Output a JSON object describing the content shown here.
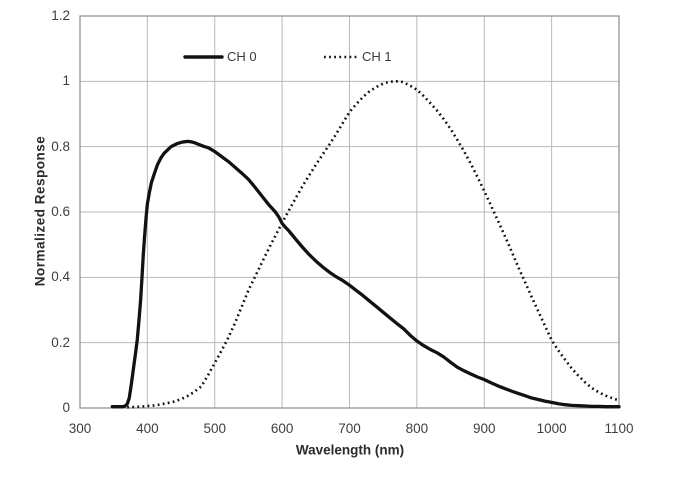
{
  "chart_data": {
    "type": "line",
    "xlabel": "Wavelength (nm)",
    "ylabel": "Normalized Response",
    "xlim": [
      300,
      1100
    ],
    "ylim": [
      0,
      1.2
    ],
    "xticks": [
      300,
      400,
      500,
      600,
      700,
      800,
      900,
      1000,
      1100
    ],
    "xtick_labels": [
      "300",
      "400",
      "500",
      "600",
      "700",
      "800",
      "900",
      "1000",
      "1100"
    ],
    "yticks": [
      0,
      0.2,
      0.4,
      0.6,
      0.8,
      1,
      1.2
    ],
    "ytick_labels": [
      "0",
      "0.2",
      "0.4",
      "0.6",
      "0.8",
      "1",
      "1.2"
    ],
    "grid": true,
    "legend": {
      "position": "top-inside",
      "entries": [
        {
          "label": "CH 0",
          "style": "solid"
        },
        {
          "label": "CH 1",
          "style": "dotted"
        }
      ]
    },
    "colors": {
      "curve": "#121212",
      "gridline": "#b9b9b9",
      "plot_border": "#8c8c8c",
      "axis_text": "#3f3f3f",
      "background": "#ffffff"
    },
    "series": [
      {
        "name": "CH 0",
        "style": "solid",
        "points": [
          [
            348,
            0.004
          ],
          [
            355,
            0.004
          ],
          [
            362,
            0.004
          ],
          [
            366,
            0.005
          ],
          [
            370,
            0.012
          ],
          [
            373,
            0.03
          ],
          [
            376,
            0.07
          ],
          [
            379,
            0.115
          ],
          [
            382,
            0.16
          ],
          [
            385,
            0.21
          ],
          [
            388,
            0.28
          ],
          [
            390,
            0.33
          ],
          [
            392,
            0.4
          ],
          [
            394,
            0.47
          ],
          [
            396,
            0.53
          ],
          [
            398,
            0.58
          ],
          [
            400,
            0.625
          ],
          [
            403,
            0.66
          ],
          [
            406,
            0.69
          ],
          [
            410,
            0.715
          ],
          [
            415,
            0.745
          ],
          [
            420,
            0.765
          ],
          [
            425,
            0.78
          ],
          [
            430,
            0.79
          ],
          [
            435,
            0.8
          ],
          [
            440,
            0.805
          ],
          [
            445,
            0.81
          ],
          [
            450,
            0.813
          ],
          [
            455,
            0.815
          ],
          [
            460,
            0.816
          ],
          [
            465,
            0.815
          ],
          [
            470,
            0.812
          ],
          [
            475,
            0.808
          ],
          [
            480,
            0.804
          ],
          [
            485,
            0.8
          ],
          [
            490,
            0.797
          ],
          [
            495,
            0.791
          ],
          [
            500,
            0.785
          ],
          [
            510,
            0.77
          ],
          [
            520,
            0.755
          ],
          [
            530,
            0.737
          ],
          [
            540,
            0.719
          ],
          [
            550,
            0.7
          ],
          [
            560,
            0.675
          ],
          [
            570,
            0.649
          ],
          [
            580,
            0.623
          ],
          [
            590,
            0.6
          ],
          [
            595,
            0.585
          ],
          [
            600,
            0.565
          ],
          [
            605,
            0.553
          ],
          [
            610,
            0.542
          ],
          [
            620,
            0.517
          ],
          [
            630,
            0.493
          ],
          [
            640,
            0.47
          ],
          [
            650,
            0.45
          ],
          [
            660,
            0.432
          ],
          [
            670,
            0.416
          ],
          [
            680,
            0.402
          ],
          [
            690,
            0.39
          ],
          [
            700,
            0.376
          ],
          [
            710,
            0.36
          ],
          [
            720,
            0.344
          ],
          [
            730,
            0.327
          ],
          [
            740,
            0.31
          ],
          [
            750,
            0.293
          ],
          [
            760,
            0.276
          ],
          [
            770,
            0.259
          ],
          [
            780,
            0.243
          ],
          [
            790,
            0.223
          ],
          [
            800,
            0.205
          ],
          [
            810,
            0.191
          ],
          [
            820,
            0.179
          ],
          [
            830,
            0.169
          ],
          [
            840,
            0.156
          ],
          [
            850,
            0.14
          ],
          [
            860,
            0.125
          ],
          [
            870,
            0.114
          ],
          [
            880,
            0.104
          ],
          [
            890,
            0.095
          ],
          [
            900,
            0.087
          ],
          [
            910,
            0.077
          ],
          [
            920,
            0.068
          ],
          [
            930,
            0.06
          ],
          [
            940,
            0.052
          ],
          [
            950,
            0.045
          ],
          [
            960,
            0.038
          ],
          [
            970,
            0.031
          ],
          [
            980,
            0.026
          ],
          [
            990,
            0.021
          ],
          [
            1000,
            0.017
          ],
          [
            1010,
            0.013
          ],
          [
            1020,
            0.01
          ],
          [
            1030,
            0.008
          ],
          [
            1040,
            0.007
          ],
          [
            1050,
            0.006
          ],
          [
            1060,
            0.005
          ],
          [
            1070,
            0.005
          ],
          [
            1080,
            0.004
          ],
          [
            1090,
            0.004
          ],
          [
            1100,
            0.004
          ]
        ]
      },
      {
        "name": "CH 1",
        "style": "dotted",
        "points": [
          [
            370,
            0.002
          ],
          [
            380,
            0.003
          ],
          [
            390,
            0.004
          ],
          [
            400,
            0.006
          ],
          [
            410,
            0.008
          ],
          [
            420,
            0.011
          ],
          [
            430,
            0.015
          ],
          [
            440,
            0.02
          ],
          [
            450,
            0.027
          ],
          [
            460,
            0.037
          ],
          [
            470,
            0.05
          ],
          [
            480,
            0.066
          ],
          [
            490,
            0.1
          ],
          [
            500,
            0.138
          ],
          [
            510,
            0.175
          ],
          [
            520,
            0.215
          ],
          [
            530,
            0.26
          ],
          [
            540,
            0.31
          ],
          [
            550,
            0.36
          ],
          [
            560,
            0.403
          ],
          [
            570,
            0.445
          ],
          [
            580,
            0.487
          ],
          [
            590,
            0.527
          ],
          [
            600,
            0.567
          ],
          [
            610,
            0.605
          ],
          [
            620,
            0.642
          ],
          [
            630,
            0.678
          ],
          [
            640,
            0.712
          ],
          [
            650,
            0.744
          ],
          [
            660,
            0.776
          ],
          [
            670,
            0.806
          ],
          [
            680,
            0.838
          ],
          [
            690,
            0.872
          ],
          [
            700,
            0.906
          ],
          [
            710,
            0.93
          ],
          [
            720,
            0.952
          ],
          [
            730,
            0.97
          ],
          [
            740,
            0.983
          ],
          [
            750,
            0.993
          ],
          [
            760,
            0.999
          ],
          [
            770,
            1.0
          ],
          [
            775,
            1.0
          ],
          [
            780,
            0.997
          ],
          [
            790,
            0.987
          ],
          [
            800,
            0.974
          ],
          [
            810,
            0.955
          ],
          [
            820,
            0.933
          ],
          [
            830,
            0.91
          ],
          [
            840,
            0.884
          ],
          [
            850,
            0.854
          ],
          [
            860,
            0.821
          ],
          [
            870,
            0.786
          ],
          [
            880,
            0.748
          ],
          [
            890,
            0.707
          ],
          [
            900,
            0.664
          ],
          [
            910,
            0.62
          ],
          [
            920,
            0.575
          ],
          [
            930,
            0.529
          ],
          [
            940,
            0.482
          ],
          [
            950,
            0.434
          ],
          [
            960,
            0.388
          ],
          [
            970,
            0.342
          ],
          [
            980,
            0.297
          ],
          [
            990,
            0.252
          ],
          [
            1000,
            0.208
          ],
          [
            1010,
            0.176
          ],
          [
            1020,
            0.148
          ],
          [
            1030,
            0.121
          ],
          [
            1040,
            0.098
          ],
          [
            1050,
            0.078
          ],
          [
            1060,
            0.061
          ],
          [
            1070,
            0.048
          ],
          [
            1080,
            0.038
          ],
          [
            1090,
            0.03
          ],
          [
            1100,
            0.023
          ]
        ]
      }
    ]
  }
}
